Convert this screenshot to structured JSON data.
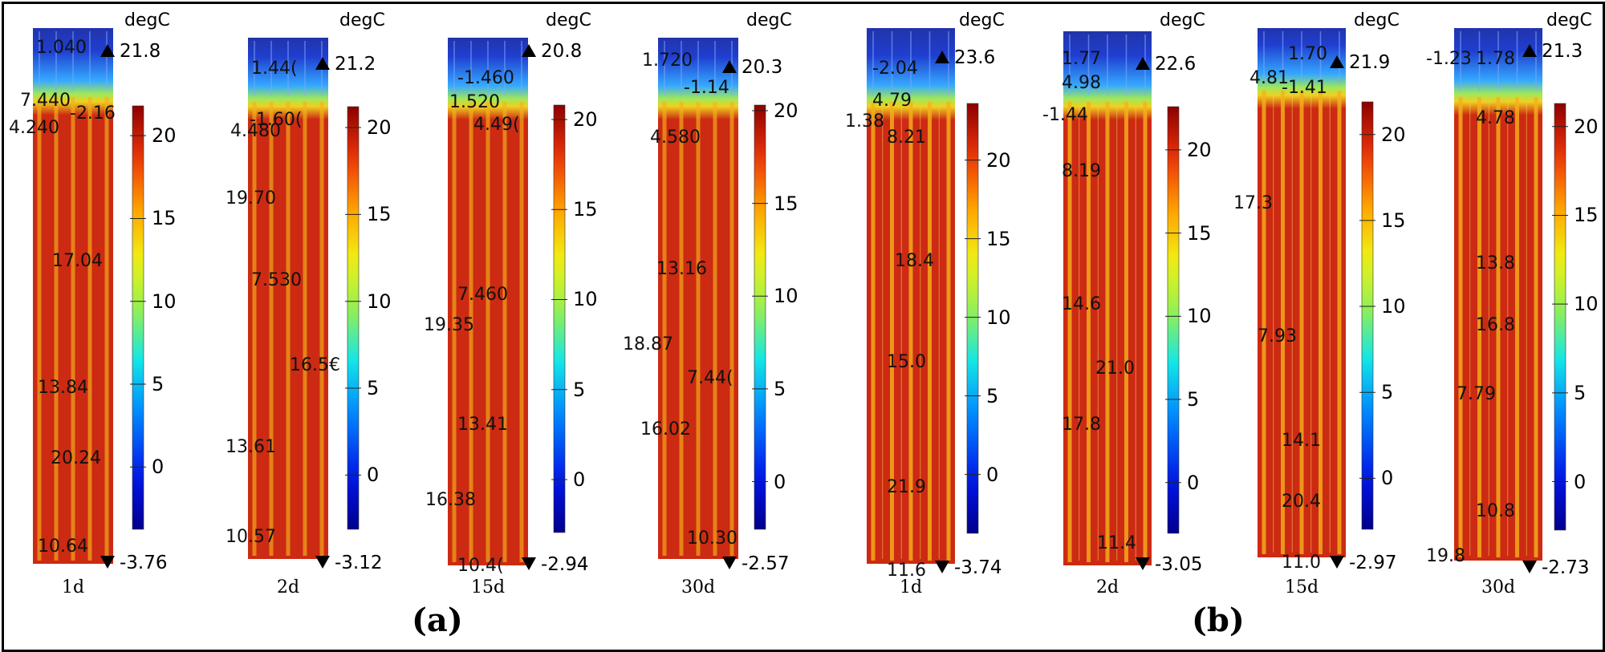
{
  "figure": {
    "groups": [
      {
        "label": "(a)",
        "panels": [
          {
            "day": "1d",
            "unit": "degC",
            "max": "21.8",
            "min": "-3.76",
            "color_max_value": 21.8,
            "color_min_value": -3.76,
            "ticks": [
              "20",
              "15",
              "10",
              "5",
              "0"
            ],
            "contour_labels": [
              "1.040",
              "7.440",
              "-2.16",
              "4.240",
              "17.04",
              "13.84",
              "20.24",
              "10.64"
            ]
          },
          {
            "day": "2d",
            "unit": "degC",
            "max": "21.2",
            "min": "-3.12",
            "color_max_value": 21.2,
            "color_min_value": -3.12,
            "ticks": [
              "20",
              "15",
              "10",
              "5",
              "0"
            ],
            "contour_labels": [
              "1.44(",
              "4.480",
              "-1.60(",
              "19.70",
              "7.530",
              "16.5€",
              "13.61",
              "10.57"
            ]
          },
          {
            "day": "15d",
            "unit": "degC",
            "max": "20.8",
            "min": "-2.94",
            "color_max_value": 20.8,
            "color_min_value": -2.94,
            "ticks": [
              "20",
              "15",
              "10",
              "5",
              "0"
            ],
            "contour_labels": [
              "-1.460",
              "1.520",
              "4.49(",
              "7.460",
              "19.35",
              "13.41",
              "16.38",
              "10.4("
            ]
          },
          {
            "day": "30d",
            "unit": "degC",
            "max": "20.3",
            "min": "-2.57",
            "color_max_value": 20.3,
            "color_min_value": -2.57,
            "ticks": [
              "20",
              "15",
              "10",
              "5",
              "0"
            ],
            "contour_labels": [
              "1.720",
              "-1.14",
              "4.580",
              "13.16",
              "18.87",
              "7.44(",
              "16.02",
              "10.30"
            ]
          }
        ]
      },
      {
        "label": "(b)",
        "panels": [
          {
            "day": "1d",
            "unit": "degC",
            "max": "23.6",
            "min": "-3.74",
            "color_max_value": 23.6,
            "color_min_value": -3.74,
            "ticks": [
              "20",
              "15",
              "10",
              "5",
              "0"
            ],
            "contour_labels": [
              "-2.04",
              "4.79",
              "1.38",
              "8.21",
              "18.4",
              "15.0",
              "21.9",
              "11.6"
            ]
          },
          {
            "day": "2d",
            "unit": "degC",
            "max": "22.6",
            "min": "-3.05",
            "color_max_value": 22.6,
            "color_min_value": -3.05,
            "ticks": [
              "20",
              "15",
              "10",
              "5",
              "0"
            ],
            "contour_labels": [
              "1.77",
              "4.98",
              "-1.44",
              "8.19",
              "14.6",
              "21.0",
              "17.8",
              "11.4"
            ]
          },
          {
            "day": "15d",
            "unit": "degC",
            "max": "21.9",
            "min": "-2.97",
            "color_max_value": 21.9,
            "color_min_value": -2.97,
            "ticks": [
              "20",
              "15",
              "10",
              "5",
              "0"
            ],
            "contour_labels": [
              "1.70",
              "4.81",
              "-1.41",
              "17.3",
              "7.93",
              "14.1",
              "20.4",
              "11.0"
            ]
          },
          {
            "day": "30d",
            "unit": "degC",
            "max": "21.3",
            "min": "-2.73",
            "color_max_value": 21.3,
            "color_min_value": -2.73,
            "ticks": [
              "20",
              "15",
              "10",
              "5",
              "0"
            ],
            "contour_labels": [
              "-1.23",
              "1.78",
              "4.78",
              "13.8",
              "16.8",
              "7.79",
              "10.8",
              "19.8"
            ]
          }
        ]
      }
    ],
    "colors": {
      "cold": "#2233aa",
      "hot": "#cc2a12",
      "pipe": "#f5b21c",
      "frame": "#000000"
    }
  }
}
